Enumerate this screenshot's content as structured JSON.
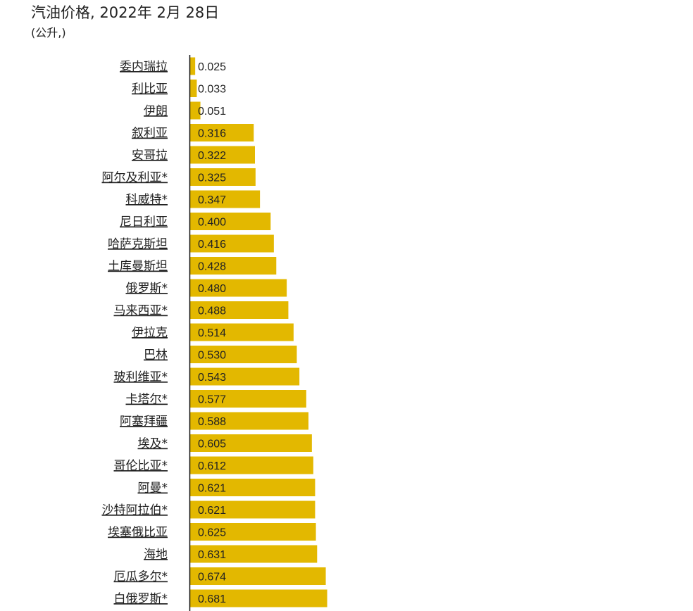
{
  "title": "汽油价格, 2022年 2月 28日",
  "subtitle": "(公升,)",
  "colors": {
    "bar": "#e3b800",
    "axis": "#111111",
    "text": "#222222"
  },
  "chart_data": {
    "type": "bar",
    "orientation": "horizontal",
    "title": "汽油价格, 2022年 2月 28日",
    "subtitle": "(公升,)",
    "categories": [
      "委内瑞拉",
      "利比亚",
      "伊朗",
      "叙利亚",
      "安哥拉",
      "阿尔及利亚*",
      "科威特*",
      "尼日利亚",
      "哈萨克斯坦",
      "土库曼斯坦",
      "俄罗斯*",
      "马来西亚*",
      "伊拉克",
      "巴林",
      "玻利维亚*",
      "卡塔尔*",
      "阿塞拜疆",
      "埃及*",
      "哥伦比亚*",
      "阿曼*",
      "沙特阿拉伯*",
      "埃塞俄比亚",
      "海地",
      "厄瓜多尔*",
      "白俄罗斯*"
    ],
    "values": [
      0.025,
      0.033,
      0.051,
      0.316,
      0.322,
      0.325,
      0.347,
      0.4,
      0.416,
      0.428,
      0.48,
      0.488,
      0.514,
      0.53,
      0.543,
      0.577,
      0.588,
      0.605,
      0.612,
      0.621,
      0.621,
      0.625,
      0.631,
      0.674,
      0.681
    ],
    "value_labels": [
      "0.025",
      "0.033",
      "0.051",
      "0.316",
      "0.322",
      "0.325",
      "0.347",
      "0.400",
      "0.416",
      "0.428",
      "0.480",
      "0.488",
      "0.514",
      "0.530",
      "0.543",
      "0.577",
      "0.588",
      "0.605",
      "0.612",
      "0.621",
      "0.621",
      "0.625",
      "0.631",
      "0.674",
      "0.681"
    ],
    "xlim": [
      0,
      2.4
    ],
    "grid": false,
    "legend": "none"
  }
}
